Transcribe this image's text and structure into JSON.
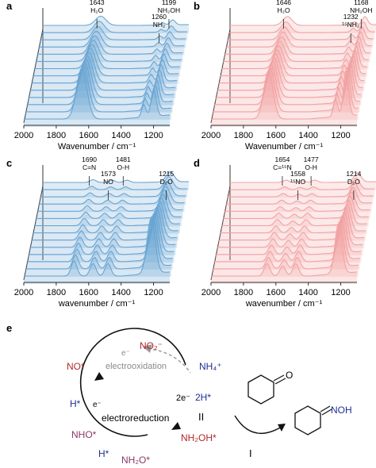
{
  "panels": [
    {
      "letter": "a",
      "xlabel": "Wavenumber / cm⁻¹",
      "ticks": [
        "2000",
        "1800",
        "1600",
        "1400",
        "1200"
      ],
      "peaks": [
        {
          "wn": 1643,
          "labels": [
            "1643",
            "H₂O"
          ]
        },
        {
          "wn": 1260,
          "labels": [
            "1260",
            "NH₂"
          ]
        },
        {
          "wn": 1199,
          "labels": [
            "1199",
            "NH₂OH"
          ]
        }
      ]
    },
    {
      "letter": "b",
      "xlabel": "Wavenumber / cm⁻¹",
      "ticks": [
        "2000",
        "1800",
        "1600",
        "1400",
        "1200"
      ],
      "peaks": [
        {
          "wn": 1646,
          "labels": [
            "1646",
            "H₂O"
          ]
        },
        {
          "wn": 1232,
          "labels": [
            "1232",
            "¹⁵NH₂"
          ]
        },
        {
          "wn": 1168,
          "labels": [
            "1168",
            "NH₂OH"
          ]
        }
      ]
    },
    {
      "letter": "c",
      "xlabel": "wavenumber / cm⁻¹",
      "ticks": [
        "2000",
        "1800",
        "1600",
        "1400",
        "1200"
      ],
      "peaks": [
        {
          "wn": 1690,
          "labels": [
            "1690",
            "C=N"
          ]
        },
        {
          "wn": 1573,
          "labels": [
            "1573",
            "NO"
          ]
        },
        {
          "wn": 1481,
          "labels": [
            "1481",
            "O-H"
          ]
        },
        {
          "wn": 1215,
          "labels": [
            "1215",
            "D₂O"
          ]
        }
      ]
    },
    {
      "letter": "d",
      "xlabel": "wavenumber / cm⁻¹",
      "ticks": [
        "2000",
        "1800",
        "1600",
        "1400",
        "1200"
      ],
      "peaks": [
        {
          "wn": 1654,
          "labels": [
            "1654",
            "C=¹⁵N"
          ]
        },
        {
          "wn": 1558,
          "labels": [
            "1558",
            "¹⁵NO"
          ]
        },
        {
          "wn": 1477,
          "labels": [
            "1477",
            "O-H"
          ]
        },
        {
          "wn": 1214,
          "labels": [
            "1214",
            "D₂O"
          ]
        }
      ]
    }
  ],
  "chart_data": [
    {
      "type": "line",
      "panel": "a",
      "x_range": [
        2000,
        1100
      ],
      "xlabel": "Wavenumber / cm⁻¹",
      "series_count": 14,
      "color": "#6aa5d3",
      "peaks_cm": [
        1643,
        1260,
        1199
      ]
    },
    {
      "type": "line",
      "panel": "b",
      "x_range": [
        2000,
        1100
      ],
      "xlabel": "Wavenumber / cm⁻¹",
      "series_count": 14,
      "color": "#f2a3a3",
      "peaks_cm": [
        1646,
        1232,
        1168
      ]
    },
    {
      "type": "line",
      "panel": "c",
      "x_range": [
        2000,
        1100
      ],
      "xlabel": "wavenumber / cm⁻¹",
      "series_count": 14,
      "color": "#6aa5d3",
      "peaks_cm": [
        1690,
        1573,
        1481,
        1215
      ]
    },
    {
      "type": "line",
      "panel": "d",
      "x_range": [
        2000,
        1100
      ],
      "xlabel": "wavenumber / cm⁻¹",
      "series_count": 14,
      "color": "#f2a3a3",
      "peaks_cm": [
        1654,
        1558,
        1477,
        1214
      ]
    }
  ],
  "scheme": {
    "letter": "e",
    "no2": "NO₂⁻",
    "e_top": "e⁻",
    "electrooxidation": "electrooxidation",
    "no": "NO*",
    "nh4": "NH₄⁺",
    "h_left": "H*",
    "e_left": "e⁻",
    "e_right": "2e⁻",
    "h_right": "2H*",
    "roman2": "II",
    "electroreduction": "electroreduction",
    "nho": "NHO*",
    "nh2oh": "NH₂OH*",
    "h_bottom": "H*",
    "nh2o": "NH₂O*",
    "roman1": "I",
    "oxime_label": "NOH",
    "ketone_o": "O",
    "colors": {
      "red": "#b3262a",
      "blue": "#1f2f8f",
      "gray": "#8a8a8a"
    }
  }
}
